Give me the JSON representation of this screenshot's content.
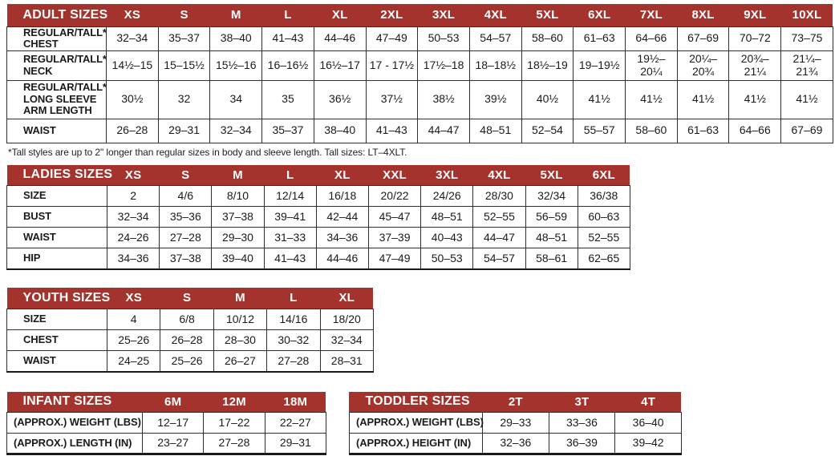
{
  "colors": {
    "header_bg": "#A4332D",
    "header_text": "#ffffff",
    "grid_line": "#2e2e2e",
    "body_text": "#1a1a1a"
  },
  "footnote": "*Tall styles are up to 2\" longer than regular sizes in body and sleeve length. Tall sizes: LT–4XLT.",
  "tables": [
    {
      "id": "adult-sizes",
      "title": "ADULT SIZES",
      "columns": [
        "XS",
        "S",
        "M",
        "L",
        "XL",
        "2XL",
        "3XL",
        "4XL",
        "5XL",
        "6XL",
        "7XL",
        "8XL",
        "9XL",
        "10XL"
      ],
      "rows": [
        {
          "label": "REGULAR/TALL*\nCHEST",
          "values": [
            "32–34",
            "35–37",
            "38–40",
            "41–43",
            "44–46",
            "47–49",
            "50–53",
            "54–57",
            "58–60",
            "61–63",
            "64–66",
            "67–69",
            "70–72",
            "73–75"
          ]
        },
        {
          "label": "REGULAR/TALL*\nNECK",
          "values": [
            "14½–15",
            "15–15½",
            "15½–16",
            "16–16½",
            "16½–17",
            "17 - 17½",
            "17½–18",
            "18–18½",
            "18½–19",
            "19–19½",
            "19½– 20¼",
            "20¼– 20¾",
            "20¾– 21¼",
            "21¼– 21¾"
          ]
        },
        {
          "label": "REGULAR/TALL*\nLONG SLEEVE\nARM LENGTH",
          "values": [
            "30½",
            "32",
            "34",
            "35",
            "36½",
            "37½",
            "38½",
            "39½",
            "40½",
            "41½",
            "41½",
            "41½",
            "41½",
            "41½"
          ]
        },
        {
          "label": "WAIST",
          "values": [
            "26–28",
            "29–31",
            "32–34",
            "35–37",
            "38–40",
            "41–43",
            "44–47",
            "48–51",
            "52–54",
            "55–57",
            "58–60",
            "61–63",
            "64–66",
            "67–69"
          ]
        }
      ]
    },
    {
      "id": "ladies-sizes",
      "title": "LADIES SIZES",
      "columns": [
        "XS",
        "S",
        "M",
        "L",
        "XL",
        "XXL",
        "3XL",
        "4XL",
        "5XL",
        "6XL"
      ],
      "rows": [
        {
          "label": "SIZE",
          "values": [
            "2",
            "4/6",
            "8/10",
            "12/14",
            "16/18",
            "20/22",
            "24/26",
            "28/30",
            "32/34",
            "36/38"
          ]
        },
        {
          "label": "BUST",
          "values": [
            "32–34",
            "35–36",
            "37–38",
            "39–41",
            "42–44",
            "45–47",
            "48–51",
            "52–55",
            "56–59",
            "60–63"
          ]
        },
        {
          "label": "WAIST",
          "values": [
            "24–26",
            "27–28",
            "29–30",
            "31–33",
            "34–36",
            "37–39",
            "40–43",
            "44–47",
            "48–51",
            "52–55"
          ]
        },
        {
          "label": "HIP",
          "values": [
            "34–36",
            "37–38",
            "39–40",
            "41–43",
            "44–46",
            "47–49",
            "50–53",
            "54–57",
            "58–61",
            "62–65"
          ]
        }
      ]
    },
    {
      "id": "youth-sizes",
      "title": "YOUTH SIZES",
      "columns": [
        "XS",
        "S",
        "M",
        "L",
        "XL"
      ],
      "rows": [
        {
          "label": "SIZE",
          "values": [
            "4",
            "6/8",
            "10/12",
            "14/16",
            "18/20"
          ]
        },
        {
          "label": "CHEST",
          "values": [
            "25–26",
            "26–28",
            "28–30",
            "30–32",
            "32–34"
          ]
        },
        {
          "label": "WAIST",
          "values": [
            "24–25",
            "25–26",
            "26–27",
            "27–28",
            "28–31"
          ]
        }
      ]
    },
    {
      "id": "infant-sizes",
      "title": "INFANT SIZES",
      "columns": [
        "6M",
        "12M",
        "18M"
      ],
      "rows": [
        {
          "label": "(APPROX.) WEIGHT (LBS)",
          "values": [
            "12–17",
            "17–22",
            "22–27"
          ]
        },
        {
          "label": "(APPROX.) LENGTH (IN)",
          "values": [
            "23–27",
            "27–28",
            "29–31"
          ]
        }
      ]
    },
    {
      "id": "toddler-sizes",
      "title": "TODDLER SIZES",
      "columns": [
        "2T",
        "3T",
        "4T"
      ],
      "rows": [
        {
          "label": "(APPROX.) WEIGHT (LBS)",
          "values": [
            "29–33",
            "33–36",
            "36–40"
          ]
        },
        {
          "label": "(APPROX.) HEIGHT (IN)",
          "values": [
            "32–36",
            "36–39",
            "39–42"
          ]
        }
      ]
    }
  ]
}
